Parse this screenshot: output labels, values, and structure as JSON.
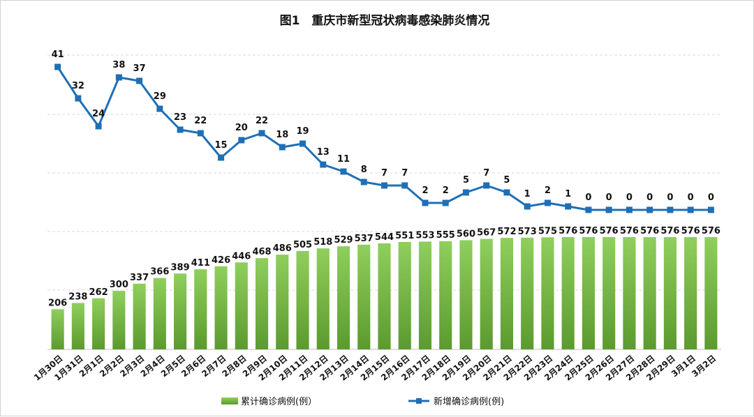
{
  "chart_data": {
    "type": "bar+line",
    "title": "图1　重庆市新型冠状病毒感染肺炎情况",
    "categories": [
      "1月30日",
      "1月31日",
      "2月1日",
      "2月2日",
      "2月3日",
      "2月4日",
      "2月5日",
      "2月6日",
      "2月7日",
      "2月8日",
      "2月9日",
      "2月10日",
      "2月11日",
      "2月12日",
      "2月13日",
      "2月14日",
      "2月15日",
      "2月16日",
      "2月17日",
      "2月18日",
      "2月19日",
      "2月20日",
      "2月21日",
      "2月22日",
      "2月23日",
      "2月24日",
      "2月25日",
      "2月26日",
      "2月27日",
      "2月28日",
      "2月29日",
      "3月1日",
      "3月2日"
    ],
    "series": [
      {
        "name": "累计确诊病例(例）",
        "type": "bar",
        "color": "#6aaa3a",
        "values": [
          206,
          238,
          262,
          300,
          337,
          366,
          389,
          411,
          426,
          446,
          468,
          486,
          505,
          518,
          529,
          537,
          544,
          551,
          553,
          555,
          560,
          567,
          572,
          573,
          575,
          576,
          576,
          576,
          576,
          576,
          576,
          576,
          576
        ]
      },
      {
        "name": "新增确诊病例(例)",
        "type": "line",
        "color": "#1f6fb5",
        "values": [
          41,
          32,
          24,
          38,
          37,
          29,
          23,
          22,
          15,
          20,
          22,
          18,
          19,
          13,
          11,
          8,
          7,
          7,
          2,
          2,
          5,
          7,
          5,
          1,
          2,
          1,
          0,
          0,
          0,
          0,
          0,
          0,
          0
        ]
      }
    ],
    "grid": true,
    "legend": "bottom"
  }
}
